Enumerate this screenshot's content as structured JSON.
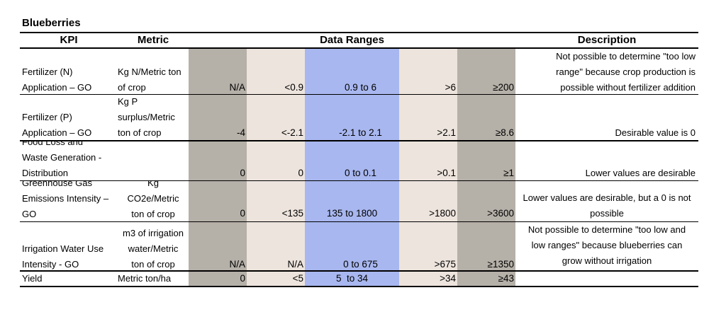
{
  "title": "Blueberries",
  "headers": {
    "kpi": "KPI",
    "metric": "Metric",
    "ranges": "Data Ranges",
    "description": "Description"
  },
  "rows": [
    {
      "kpi": [
        "Fertilizer (N)",
        "Application – GO"
      ],
      "metric": [
        "Kg N/Metric ton",
        "of crop"
      ],
      "ranges": [
        "N/A",
        "<0.9",
        "0.9 to 6",
        ">6",
        "≥200"
      ],
      "description": [
        "Not possible to determine \"too low",
        "range\" because crop production is",
        "possible without fertilizer addition"
      ]
    },
    {
      "kpi": [
        "Fertilizer (P)",
        "Application – GO"
      ],
      "metric": [
        "Kg P",
        "surplus/Metric",
        "ton of crop"
      ],
      "ranges": [
        "-4",
        "<-2.1",
        "-2.1 to 2.1",
        ">2.1",
        "≥8.6"
      ],
      "description": [
        "Desirable value is 0"
      ]
    },
    {
      "kpi": [
        "Food Loss and",
        "Waste Generation -",
        "Distribution"
      ],
      "metric": [],
      "ranges": [
        "0",
        "0",
        "0 to 0.1",
        ">0.1",
        "≥1"
      ],
      "description": [
        "Lower values are desirable"
      ]
    },
    {
      "kpi": [
        "Greenhouse Gas",
        "Emissions Intensity –",
        "GO"
      ],
      "metric": [
        "Kg",
        "CO2e/Metric",
        "ton of crop"
      ],
      "ranges": [
        "0",
        "<135",
        "135 to 1800",
        ">1800",
        ">3600"
      ],
      "description": [
        "Lower values are desirable, but a 0 is not",
        "possible"
      ]
    },
    {
      "kpi": [
        "Irrigation Water Use",
        "Intensity - GO"
      ],
      "metric": [
        "m3 of irrigation",
        "water/Metric",
        "ton of crop"
      ],
      "ranges": [
        "N/A",
        "N/A",
        "0 to 675",
        ">675",
        "≥1350"
      ],
      "description": [
        "Not possible to determine \"too low and",
        "low ranges\" because blueberries can",
        "grow without irrigation"
      ]
    },
    {
      "kpi": [
        "Yield"
      ],
      "metric": [
        "Metric ton/ha"
      ],
      "ranges": [
        "0",
        "<5",
        "5  to 34",
        ">34",
        "≥43"
      ],
      "description": []
    }
  ]
}
